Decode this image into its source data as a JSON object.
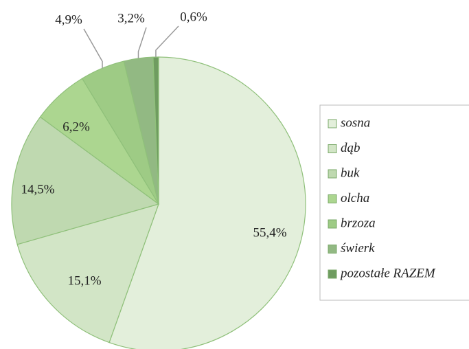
{
  "chart_data": {
    "type": "pie",
    "categories": [
      "sosna",
      "dąb",
      "buk",
      "olcha",
      "brzoza",
      "świerk",
      "pozostałe RAZEM"
    ],
    "values": [
      55.4,
      15.1,
      14.5,
      6.2,
      4.9,
      3.2,
      0.6
    ],
    "value_labels": [
      "55,4%",
      "15,1%",
      "14,5%",
      "6,2%",
      "4,9%",
      "3,2%",
      "0,6%"
    ],
    "colors": [
      "#e3efdb",
      "#d2e5c6",
      "#bfd9b0",
      "#acd690",
      "#9ecb85",
      "#92b983",
      "#6f9c60"
    ],
    "legend": "right"
  }
}
